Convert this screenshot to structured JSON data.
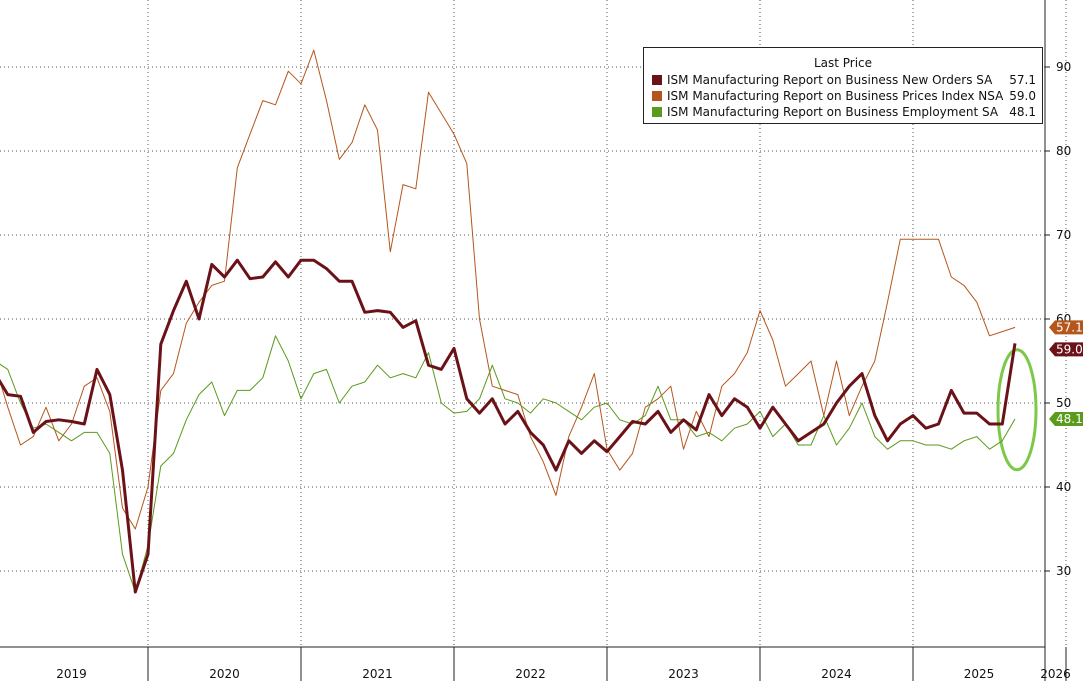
{
  "legend": {
    "title": "Last Price",
    "items": [
      {
        "label": "ISM Manufacturing Report on Business New Orders SA",
        "value": "57.1",
        "color": "#6b1219"
      },
      {
        "label": "ISM Manufacturing Report on Business Prices Index NSA",
        "value": "59.0",
        "color": "#b5561c"
      },
      {
        "label": "ISM Manufacturing Report on Business Employment SA",
        "value": "48.1",
        "color": "#5a9a1c"
      }
    ]
  },
  "chart_data": {
    "type": "line",
    "title": "",
    "xlabel": "",
    "ylabel": "",
    "ylim": [
      20,
      98
    ],
    "y_ticks": [
      30,
      40,
      50,
      60,
      70,
      80,
      90
    ],
    "x_labels": [
      "2019",
      "2020",
      "2021",
      "2022",
      "2023",
      "2024",
      "2025",
      "2026"
    ],
    "x_start": "2019-01",
    "grid": true,
    "y_axis_side": "right",
    "last_value_tags": [
      "59.0",
      "57.1",
      "48.1"
    ],
    "series": [
      {
        "name": "ISM Manufacturing Report on Business New Orders SA",
        "color": "#6b1219",
        "width": 3,
        "values": [
          53.5,
          51.0,
          50.8,
          46.5,
          47.8,
          48.0,
          47.8,
          47.5,
          54.0,
          51.0,
          42.0,
          27.5,
          32.0,
          57.0,
          61.0,
          64.5,
          60.0,
          66.5,
          65.0,
          67.0,
          64.8,
          65.0,
          66.8,
          65.0,
          67.0,
          67.0,
          66.0,
          64.5,
          64.5,
          60.8,
          61.0,
          60.8,
          59.0,
          59.8,
          54.5,
          54.0,
          56.5,
          50.5,
          48.8,
          50.5,
          47.5,
          49.0,
          46.5,
          45.0,
          42.0,
          45.5,
          44.0,
          45.5,
          44.2,
          46.0,
          47.8,
          47.5,
          49.0,
          46.5,
          48.0,
          46.8,
          51.0,
          48.5,
          50.5,
          49.5,
          47.0,
          49.5,
          47.5,
          45.5,
          46.5,
          47.5,
          50.0,
          52.0,
          53.5,
          48.5,
          45.5,
          47.5,
          48.5,
          47.0,
          47.5,
          51.5,
          48.8,
          48.8,
          47.5,
          47.5,
          57.1
        ]
      },
      {
        "name": "ISM Manufacturing Report on Business Prices Index NSA",
        "color": "#b5561c",
        "width": 1,
        "values": [
          54.5,
          49.5,
          45.0,
          46.0,
          49.5,
          45.5,
          47.5,
          52.0,
          53.0,
          49.0,
          37.5,
          35.0,
          40.0,
          51.5,
          53.5,
          59.5,
          62.0,
          64.0,
          64.5,
          78.0,
          82.0,
          86.0,
          85.5,
          89.5,
          88.0,
          92.0,
          86.0,
          79.0,
          81.0,
          85.5,
          82.5,
          68.0,
          76.0,
          75.5,
          87.0,
          84.5,
          82.0,
          78.5,
          60.0,
          52.0,
          51.5,
          51.0,
          46.0,
          43.0,
          39.0,
          46.0,
          49.5,
          53.5,
          44.5,
          42.0,
          44.0,
          49.5,
          50.5,
          52.0,
          44.5,
          49.0,
          46.0,
          52.0,
          53.5,
          56.0,
          61.0,
          57.5,
          52.0,
          53.5,
          55.0,
          48.5,
          55.0,
          48.5,
          52.0,
          55.0,
          62.0,
          69.5,
          69.5,
          69.5,
          69.5,
          65.0,
          64.0,
          62.0,
          58.0,
          58.5,
          59.0
        ]
      },
      {
        "name": "ISM Manufacturing Report on Business Employment SA",
        "color": "#5a9a1c",
        "width": 1,
        "values": [
          55.0,
          54.0,
          50.0,
          47.0,
          47.5,
          46.5,
          45.5,
          46.5,
          46.5,
          44.0,
          32.0,
          27.5,
          33.0,
          42.5,
          44.0,
          48.0,
          51.0,
          52.5,
          48.5,
          51.5,
          51.5,
          53.0,
          58.0,
          55.0,
          50.5,
          53.5,
          54.0,
          50.0,
          52.0,
          52.5,
          54.5,
          53.0,
          53.5,
          53.0,
          56.0,
          50.0,
          48.8,
          49.0,
          50.5,
          54.5,
          50.5,
          50.0,
          48.8,
          50.5,
          50.0,
          49.0,
          48.0,
          49.5,
          50.0,
          48.0,
          47.5,
          48.5,
          52.0,
          48.0,
          48.0,
          46.0,
          46.5,
          45.5,
          47.0,
          47.5,
          49.0,
          46.0,
          47.5,
          45.0,
          45.0,
          48.5,
          45.0,
          47.0,
          50.0,
          46.0,
          44.5,
          45.5,
          45.5,
          45.0,
          45.0,
          44.5,
          45.5,
          46.0,
          44.5,
          45.5,
          48.1
        ]
      }
    ]
  }
}
